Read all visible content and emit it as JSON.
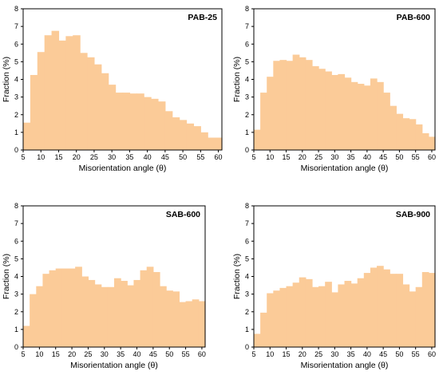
{
  "chart_data": [
    {
      "type": "bar",
      "title": "PAB-25",
      "xlabel": "Misorientation angle (θ)",
      "ylabel": "Fraction (%)",
      "xlim": [
        5,
        61
      ],
      "ylim": [
        0,
        8
      ],
      "xticks": [
        5,
        10,
        15,
        20,
        25,
        30,
        35,
        40,
        45,
        50,
        55,
        60
      ],
      "yticks": [
        0,
        1,
        2,
        3,
        4,
        5,
        6,
        7,
        8
      ],
      "bin_width": 2,
      "x": [
        6,
        8,
        10,
        12,
        14,
        16,
        18,
        20,
        22,
        24,
        26,
        28,
        30,
        32,
        34,
        36,
        38,
        40,
        42,
        44,
        46,
        48,
        50,
        52,
        54,
        56,
        58,
        60
      ],
      "values": [
        1.55,
        4.25,
        5.55,
        6.5,
        6.75,
        6.2,
        6.45,
        6.5,
        5.5,
        5.25,
        4.85,
        4.35,
        3.7,
        3.25,
        3.25,
        3.2,
        3.2,
        3.0,
        2.9,
        2.75,
        2.2,
        1.85,
        1.7,
        1.5,
        1.35,
        1.0,
        0.7,
        0.7
      ],
      "color": "#fbcb98",
      "grid": false
    },
    {
      "type": "bar",
      "title": "PAB-600",
      "xlabel": "Misorientation angle (θ)",
      "ylabel": "Fraction (%)",
      "xlim": [
        5,
        61
      ],
      "ylim": [
        0,
        8
      ],
      "xticks": [
        5,
        10,
        15,
        20,
        25,
        30,
        35,
        40,
        45,
        50,
        55,
        60
      ],
      "yticks": [
        0,
        1,
        2,
        3,
        4,
        5,
        6,
        7,
        8
      ],
      "bin_width": 2,
      "x": [
        6,
        8,
        10,
        12,
        14,
        16,
        18,
        20,
        22,
        24,
        26,
        28,
        30,
        32,
        34,
        36,
        38,
        40,
        42,
        44,
        46,
        48,
        50,
        52,
        54,
        56,
        58,
        60
      ],
      "values": [
        1.15,
        3.25,
        4.15,
        5.05,
        5.1,
        5.05,
        5.4,
        5.25,
        5.1,
        4.75,
        4.6,
        4.45,
        4.25,
        4.3,
        4.1,
        3.85,
        3.75,
        3.65,
        4.05,
        3.85,
        3.25,
        2.5,
        2.05,
        1.8,
        1.75,
        1.45,
        0.95,
        0.75
      ],
      "color": "#fbcb98",
      "grid": false
    },
    {
      "type": "bar",
      "title": "SAB-600",
      "xlabel": "Misorientation angle (θ)",
      "ylabel": "Fraction (%)",
      "xlim": [
        5,
        61
      ],
      "ylim": [
        0,
        8
      ],
      "xticks": [
        5,
        10,
        15,
        20,
        25,
        30,
        35,
        40,
        45,
        50,
        55,
        60
      ],
      "yticks": [
        0,
        1,
        2,
        3,
        4,
        5,
        6,
        7,
        8
      ],
      "bin_width": 2,
      "x": [
        6,
        8,
        10,
        12,
        14,
        16,
        18,
        20,
        22,
        24,
        26,
        28,
        30,
        32,
        34,
        36,
        38,
        40,
        42,
        44,
        46,
        48,
        50,
        52,
        54,
        56,
        58,
        60
      ],
      "values": [
        1.2,
        3.0,
        3.45,
        4.15,
        4.35,
        4.45,
        4.45,
        4.45,
        4.55,
        4.0,
        3.8,
        3.55,
        3.4,
        3.4,
        3.9,
        3.75,
        3.5,
        3.8,
        4.35,
        4.55,
        4.25,
        3.45,
        3.2,
        3.15,
        2.55,
        2.6,
        2.7,
        2.6
      ],
      "color": "#fbcb98",
      "grid": false
    },
    {
      "type": "bar",
      "title": "SAB-900",
      "xlabel": "Misorientation angle (θ)",
      "ylabel": "Fraction (%)",
      "xlim": [
        5,
        61
      ],
      "ylim": [
        0,
        8
      ],
      "xticks": [
        5,
        10,
        15,
        20,
        25,
        30,
        35,
        40,
        45,
        50,
        55,
        60
      ],
      "yticks": [
        0,
        1,
        2,
        3,
        4,
        5,
        6,
        7,
        8
      ],
      "bin_width": 2,
      "x": [
        6,
        8,
        10,
        12,
        14,
        16,
        18,
        20,
        22,
        24,
        26,
        28,
        30,
        32,
        34,
        36,
        38,
        40,
        42,
        44,
        46,
        48,
        50,
        52,
        54,
        56,
        58,
        60
      ],
      "values": [
        0.75,
        1.95,
        3.05,
        3.2,
        3.35,
        3.45,
        3.65,
        3.95,
        3.85,
        3.4,
        3.45,
        3.7,
        3.1,
        3.55,
        3.75,
        3.6,
        3.9,
        4.2,
        4.5,
        4.6,
        4.4,
        4.15,
        4.15,
        3.55,
        3.15,
        3.4,
        4.25,
        4.2
      ],
      "color": "#fbcb98",
      "grid": false
    }
  ]
}
